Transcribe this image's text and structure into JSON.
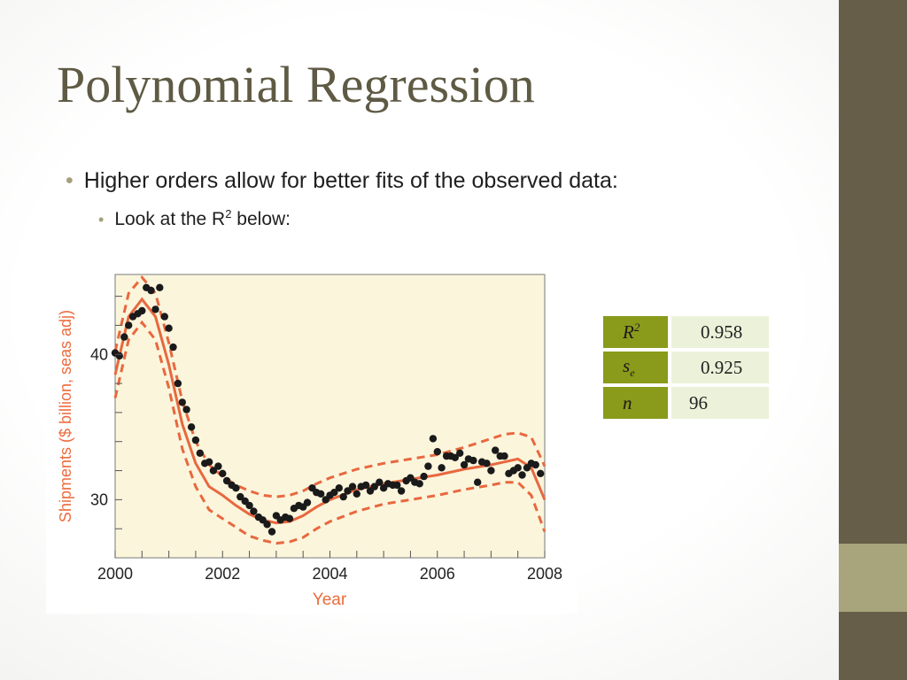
{
  "slide": {
    "title": "Polynomial Regression",
    "bullet1": "Higher orders allow for better fits of the observed data:",
    "bullet2_prefix": "Look at the R",
    "bullet2_sup": "2",
    "bullet2_suffix": " below:"
  },
  "colors": {
    "title": "#5f5a44",
    "sidebar": "#665e48",
    "sidebar_accent": "#a8a47c",
    "bullet": "#a5a07c",
    "table_label_bg": "#8a9a1b",
    "table_value_bg": "#ecf2d9",
    "plot_bg": "#fbf5dc",
    "fit_line": "#e8683f",
    "points": "#1a1a1a"
  },
  "stats_table": [
    {
      "symbol": "R",
      "sup": "2",
      "sub": "",
      "value": "0.958"
    },
    {
      "symbol": "s",
      "sup": "",
      "sub": "e",
      "value": "0.925"
    },
    {
      "symbol": "n",
      "sup": "",
      "sub": "",
      "value": "96"
    }
  ],
  "chart_data": {
    "type": "scatter",
    "xlabel": "Year",
    "ylabel": "Shipments ($ billion, seas adj)",
    "xlim": [
      2000,
      2008
    ],
    "ylim": [
      26,
      45.5
    ],
    "xticks": [
      "2000",
      "2002",
      "2004",
      "2006",
      "2008"
    ],
    "yticks": [
      "30",
      "40"
    ],
    "grid": false,
    "series": [
      {
        "kind": "points",
        "x": [
          2000.0,
          2000.08,
          2000.17,
          2000.25,
          2000.33,
          2000.42,
          2000.5,
          2000.58,
          2000.67,
          2000.75,
          2000.83,
          2000.92,
          2001.0,
          2001.08,
          2001.17,
          2001.25,
          2001.33,
          2001.42,
          2001.5,
          2001.58,
          2001.67,
          2001.75,
          2001.83,
          2001.92,
          2002.0,
          2002.08,
          2002.17,
          2002.25,
          2002.33,
          2002.42,
          2002.5,
          2002.58,
          2002.67,
          2002.75,
          2002.83,
          2002.92,
          2003.0,
          2003.08,
          2003.17,
          2003.25,
          2003.33,
          2003.42,
          2003.5,
          2003.58,
          2003.67,
          2003.75,
          2003.83,
          2003.92,
          2004.0,
          2004.08,
          2004.17,
          2004.25,
          2004.33,
          2004.42,
          2004.5,
          2004.58,
          2004.67,
          2004.75,
          2004.83,
          2004.92,
          2005.0,
          2005.08,
          2005.17,
          2005.25,
          2005.33,
          2005.42,
          2005.5,
          2005.58,
          2005.67,
          2005.75,
          2005.83,
          2005.92,
          2006.0,
          2006.08,
          2006.17,
          2006.25,
          2006.33,
          2006.42,
          2006.5,
          2006.58,
          2006.67,
          2006.75,
          2006.83,
          2006.92,
          2007.0,
          2007.08,
          2007.17,
          2007.25,
          2007.33,
          2007.42,
          2007.5,
          2007.58,
          2007.67,
          2007.75,
          2007.83,
          2007.92
        ],
        "y": [
          40.1,
          39.9,
          41.2,
          42.0,
          42.6,
          42.8,
          43.0,
          44.6,
          44.4,
          43.1,
          44.6,
          42.6,
          41.8,
          40.5,
          38.0,
          36.7,
          36.2,
          35.0,
          34.1,
          33.2,
          32.5,
          32.6,
          32.0,
          32.3,
          31.8,
          31.3,
          31.0,
          30.8,
          30.2,
          29.9,
          29.6,
          29.2,
          28.8,
          28.6,
          28.3,
          27.8,
          28.9,
          28.6,
          28.8,
          28.7,
          29.4,
          29.6,
          29.5,
          29.8,
          30.8,
          30.5,
          30.4,
          30.0,
          30.3,
          30.5,
          30.8,
          30.2,
          30.6,
          30.9,
          30.4,
          30.9,
          31.0,
          30.6,
          30.9,
          31.2,
          30.8,
          31.1,
          31.0,
          31.0,
          30.6,
          31.3,
          31.5,
          31.2,
          31.1,
          31.6,
          32.3,
          34.2,
          33.3,
          32.2,
          33.0,
          33.0,
          32.9,
          33.2,
          32.4,
          32.8,
          32.7,
          31.2,
          32.6,
          32.5,
          32.0,
          33.4,
          33.0,
          33.0,
          31.8,
          32.0,
          32.2,
          31.7,
          32.2,
          32.5,
          32.4,
          31.8
        ]
      },
      {
        "kind": "fit",
        "name": "",
        "x": [
          2000.0,
          2000.25,
          2000.5,
          2000.75,
          2001.0,
          2001.25,
          2001.5,
          2001.75,
          2002.0,
          2002.25,
          2002.5,
          2002.75,
          2003.0,
          2003.25,
          2003.5,
          2003.75,
          2004.0,
          2004.5,
          2005.0,
          2005.5,
          2006.0,
          2006.5,
          2007.0,
          2007.25,
          2007.5,
          2007.75,
          2008.0
        ],
        "y": [
          38.6,
          42.6,
          43.8,
          42.6,
          39.3,
          35.2,
          32.5,
          30.9,
          30.3,
          29.6,
          29.0,
          28.6,
          28.4,
          28.5,
          28.9,
          29.5,
          30.0,
          30.7,
          31.1,
          31.4,
          31.7,
          32.1,
          32.4,
          32.6,
          32.8,
          32.2,
          30.0
        ]
      },
      {
        "kind": "upper_band",
        "x": [
          2000.0,
          2000.25,
          2000.5,
          2000.75,
          2001.0,
          2001.25,
          2001.5,
          2001.75,
          2002.0,
          2002.25,
          2002.5,
          2002.75,
          2003.0,
          2003.25,
          2003.5,
          2003.75,
          2004.0,
          2004.5,
          2005.0,
          2005.5,
          2006.0,
          2006.5,
          2007.0,
          2007.25,
          2007.5,
          2007.75,
          2008.0
        ],
        "y": [
          40.2,
          44.2,
          45.3,
          44.2,
          40.8,
          36.8,
          34.0,
          32.4,
          31.6,
          31.0,
          30.6,
          30.3,
          30.2,
          30.3,
          30.6,
          31.1,
          31.5,
          32.1,
          32.5,
          32.8,
          33.1,
          33.6,
          34.2,
          34.5,
          34.6,
          34.3,
          32.3
        ]
      },
      {
        "kind": "lower_band",
        "x": [
          2000.0,
          2000.25,
          2000.5,
          2000.75,
          2001.0,
          2001.25,
          2001.5,
          2001.75,
          2002.0,
          2002.25,
          2002.5,
          2002.75,
          2003.0,
          2003.25,
          2003.5,
          2003.75,
          2004.0,
          2004.5,
          2005.0,
          2005.5,
          2006.0,
          2006.5,
          2007.0,
          2007.25,
          2007.5,
          2007.75,
          2008.0
        ],
        "y": [
          37.0,
          41.0,
          42.2,
          41.0,
          37.7,
          33.5,
          30.9,
          29.3,
          28.7,
          28.1,
          27.5,
          27.2,
          27.0,
          27.1,
          27.4,
          28.0,
          28.5,
          29.2,
          29.7,
          30.0,
          30.3,
          30.7,
          31.0,
          31.2,
          31.2,
          30.3,
          27.8
        ]
      }
    ]
  }
}
